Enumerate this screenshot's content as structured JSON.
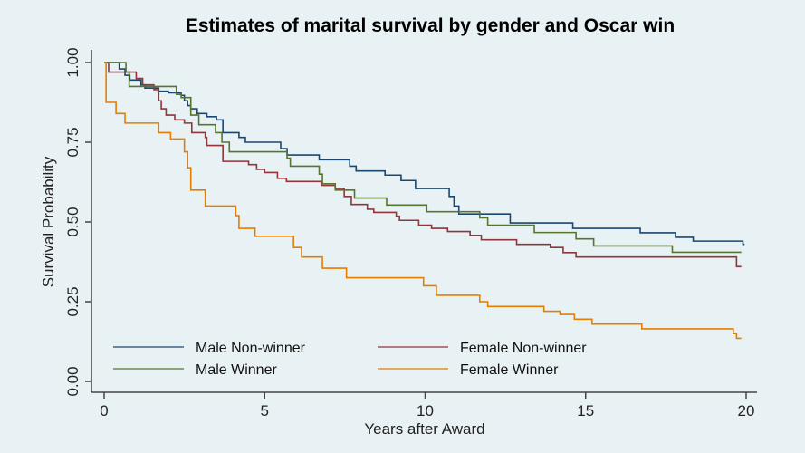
{
  "chart_data": {
    "type": "line",
    "subtype": "step (Kaplan-Meier)",
    "title": "Estimates of marital survival by gender and Oscar win",
    "xlabel": "Years after Award",
    "ylabel": "Survival Probability",
    "xlim": [
      0,
      20
    ],
    "ylim": [
      0,
      1
    ],
    "xticks": [
      "0",
      "5",
      "10",
      "15",
      "20"
    ],
    "xtick_values": [
      0,
      5,
      10,
      15,
      20
    ],
    "yticks": [
      "0.00",
      "0.25",
      "0.50",
      "0.75",
      "1.00"
    ],
    "ytick_values": [
      0,
      0.25,
      0.5,
      0.75,
      1
    ],
    "grid": false,
    "legend_placement": "bottom-inside",
    "series": [
      {
        "name": "Male Non-winner",
        "color": "#1a476f",
        "end": 19.95,
        "steps": [
          [
            0,
            1
          ],
          [
            0.47,
            0.98
          ],
          [
            0.65,
            0.96
          ],
          [
            0.8,
            0.945
          ],
          [
            1.15,
            0.93
          ],
          [
            1.27,
            0.92
          ],
          [
            1.7,
            0.91
          ],
          [
            2.0,
            0.905
          ],
          [
            2.4,
            0.897
          ],
          [
            2.5,
            0.88
          ],
          [
            2.6,
            0.865
          ],
          [
            2.7,
            0.855
          ],
          [
            2.9,
            0.84
          ],
          [
            3.2,
            0.83
          ],
          [
            3.5,
            0.82
          ],
          [
            3.7,
            0.78
          ],
          [
            4.2,
            0.765
          ],
          [
            4.4,
            0.75
          ],
          [
            5.5,
            0.73
          ],
          [
            5.7,
            0.71
          ],
          [
            6.7,
            0.695
          ],
          [
            7.65,
            0.675
          ],
          [
            7.85,
            0.66
          ],
          [
            8.75,
            0.647
          ],
          [
            9.25,
            0.63
          ],
          [
            9.7,
            0.605
          ],
          [
            10.75,
            0.58
          ],
          [
            10.9,
            0.55
          ],
          [
            11.05,
            0.525
          ],
          [
            12.65,
            0.497
          ],
          [
            14.6,
            0.48
          ],
          [
            16.7,
            0.466
          ],
          [
            17.8,
            0.452
          ],
          [
            18.35,
            0.44
          ],
          [
            19.9,
            0.43
          ]
        ]
      },
      {
        "name": "Female Non-winner",
        "color": "#90353b",
        "end": 19.85,
        "steps": [
          [
            0,
            1
          ],
          [
            0.14,
            0.97
          ],
          [
            1.0,
            0.95
          ],
          [
            1.2,
            0.93
          ],
          [
            1.55,
            0.915
          ],
          [
            1.7,
            0.88
          ],
          [
            1.78,
            0.855
          ],
          [
            1.93,
            0.835
          ],
          [
            2.2,
            0.82
          ],
          [
            2.5,
            0.81
          ],
          [
            2.73,
            0.78
          ],
          [
            3.15,
            0.765
          ],
          [
            3.2,
            0.74
          ],
          [
            3.7,
            0.69
          ],
          [
            4.5,
            0.68
          ],
          [
            4.75,
            0.665
          ],
          [
            5.0,
            0.655
          ],
          [
            5.4,
            0.637
          ],
          [
            5.68,
            0.627
          ],
          [
            6.77,
            0.615
          ],
          [
            7.2,
            0.605
          ],
          [
            7.48,
            0.58
          ],
          [
            7.7,
            0.555
          ],
          [
            8.2,
            0.54
          ],
          [
            8.4,
            0.53
          ],
          [
            9.1,
            0.518
          ],
          [
            9.2,
            0.505
          ],
          [
            9.8,
            0.49
          ],
          [
            10.2,
            0.48
          ],
          [
            10.7,
            0.47
          ],
          [
            11.4,
            0.458
          ],
          [
            11.75,
            0.444
          ],
          [
            12.85,
            0.43
          ],
          [
            13.9,
            0.42
          ],
          [
            14.3,
            0.404
          ],
          [
            14.7,
            0.39
          ],
          [
            19.7,
            0.36
          ]
        ]
      },
      {
        "name": "Male Winner",
        "color": "#55752f",
        "end": 19.85,
        "steps": [
          [
            0,
            1
          ],
          [
            0.68,
            0.97
          ],
          [
            0.78,
            0.925
          ],
          [
            2.25,
            0.9
          ],
          [
            2.4,
            0.89
          ],
          [
            2.7,
            0.835
          ],
          [
            2.95,
            0.805
          ],
          [
            3.47,
            0.78
          ],
          [
            3.67,
            0.75
          ],
          [
            3.9,
            0.72
          ],
          [
            5.7,
            0.7
          ],
          [
            5.8,
            0.675
          ],
          [
            6.7,
            0.65
          ],
          [
            6.8,
            0.62
          ],
          [
            7.2,
            0.6
          ],
          [
            7.8,
            0.575
          ],
          [
            8.8,
            0.553
          ],
          [
            10.05,
            0.532
          ],
          [
            11.7,
            0.513
          ],
          [
            11.95,
            0.49
          ],
          [
            13.4,
            0.467
          ],
          [
            14.7,
            0.447
          ],
          [
            15.25,
            0.425
          ],
          [
            17.7,
            0.405
          ]
        ]
      },
      {
        "name": "Female Winner",
        "color": "#e37e00",
        "end": 19.85,
        "steps": [
          [
            0,
            1
          ],
          [
            0.06,
            0.875
          ],
          [
            0.37,
            0.84
          ],
          [
            0.65,
            0.81
          ],
          [
            1.7,
            0.78
          ],
          [
            2.07,
            0.76
          ],
          [
            2.5,
            0.72
          ],
          [
            2.6,
            0.67
          ],
          [
            2.7,
            0.6
          ],
          [
            3.15,
            0.55
          ],
          [
            4.1,
            0.52
          ],
          [
            4.2,
            0.48
          ],
          [
            4.7,
            0.455
          ],
          [
            5.9,
            0.42
          ],
          [
            6.15,
            0.39
          ],
          [
            6.8,
            0.355
          ],
          [
            7.55,
            0.325
          ],
          [
            9.95,
            0.3
          ],
          [
            10.35,
            0.27
          ],
          [
            11.7,
            0.25
          ],
          [
            11.95,
            0.235
          ],
          [
            13.7,
            0.22
          ],
          [
            14.2,
            0.21
          ],
          [
            14.65,
            0.195
          ],
          [
            15.2,
            0.18
          ],
          [
            16.75,
            0.165
          ],
          [
            19.6,
            0.15
          ],
          [
            19.7,
            0.135
          ]
        ]
      }
    ]
  }
}
